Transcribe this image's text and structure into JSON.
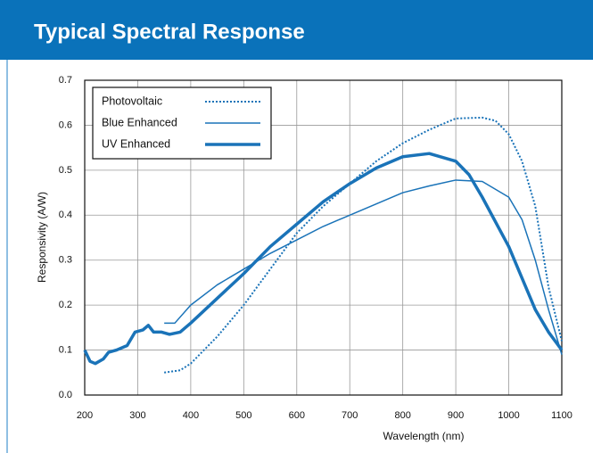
{
  "chart_data": {
    "type": "line",
    "title": "Typical Spectral Response",
    "xlabel": "Wavelength (nm)",
    "ylabel": "Responsivity (A/W)",
    "xlim": [
      200,
      1100
    ],
    "ylim": [
      0,
      0.7
    ],
    "xticks": [
      200,
      300,
      400,
      500,
      600,
      700,
      800,
      900,
      1000,
      1100
    ],
    "yticks": [
      {
        "value": 0,
        "label": "0.0"
      },
      0.1,
      0.2,
      0.3,
      0.4,
      0.5,
      0.6,
      0.7
    ],
    "grid": true,
    "legend": "upper left",
    "series": [
      {
        "name": "Photovoltaic",
        "color": "#1a73b8",
        "style": "dotted",
        "x": [
          350,
          380,
          400,
          450,
          500,
          550,
          600,
          650,
          700,
          750,
          800,
          850,
          900,
          950,
          975,
          1000,
          1025,
          1050,
          1075,
          1100
        ],
        "values": [
          0.05,
          0.055,
          0.07,
          0.13,
          0.2,
          0.28,
          0.36,
          0.42,
          0.47,
          0.52,
          0.56,
          0.59,
          0.615,
          0.617,
          0.61,
          0.58,
          0.52,
          0.42,
          0.24,
          0.12
        ]
      },
      {
        "name": "Blue Enhanced",
        "color": "#1a73b8",
        "style": "thin",
        "x": [
          350,
          370,
          400,
          450,
          500,
          550,
          600,
          650,
          700,
          750,
          800,
          850,
          900,
          950,
          1000,
          1025,
          1050,
          1075,
          1100
        ],
        "values": [
          0.16,
          0.16,
          0.2,
          0.245,
          0.28,
          0.315,
          0.345,
          0.375,
          0.4,
          0.425,
          0.45,
          0.465,
          0.478,
          0.475,
          0.44,
          0.39,
          0.3,
          0.19,
          0.09
        ]
      },
      {
        "name": "UV Enhanced",
        "color": "#1a73b8",
        "style": "thick",
        "x": [
          200,
          210,
          220,
          235,
          245,
          260,
          280,
          295,
          310,
          320,
          330,
          345,
          360,
          380,
          400,
          450,
          500,
          550,
          600,
          650,
          700,
          750,
          800,
          850,
          900,
          925,
          950,
          1000,
          1025,
          1050,
          1075,
          1100
        ],
        "values": [
          0.1,
          0.075,
          0.07,
          0.08,
          0.095,
          0.1,
          0.11,
          0.14,
          0.145,
          0.155,
          0.14,
          0.14,
          0.135,
          0.14,
          0.16,
          0.215,
          0.27,
          0.33,
          0.38,
          0.43,
          0.47,
          0.505,
          0.53,
          0.537,
          0.52,
          0.49,
          0.44,
          0.33,
          0.26,
          0.19,
          0.14,
          0.1
        ]
      }
    ]
  }
}
